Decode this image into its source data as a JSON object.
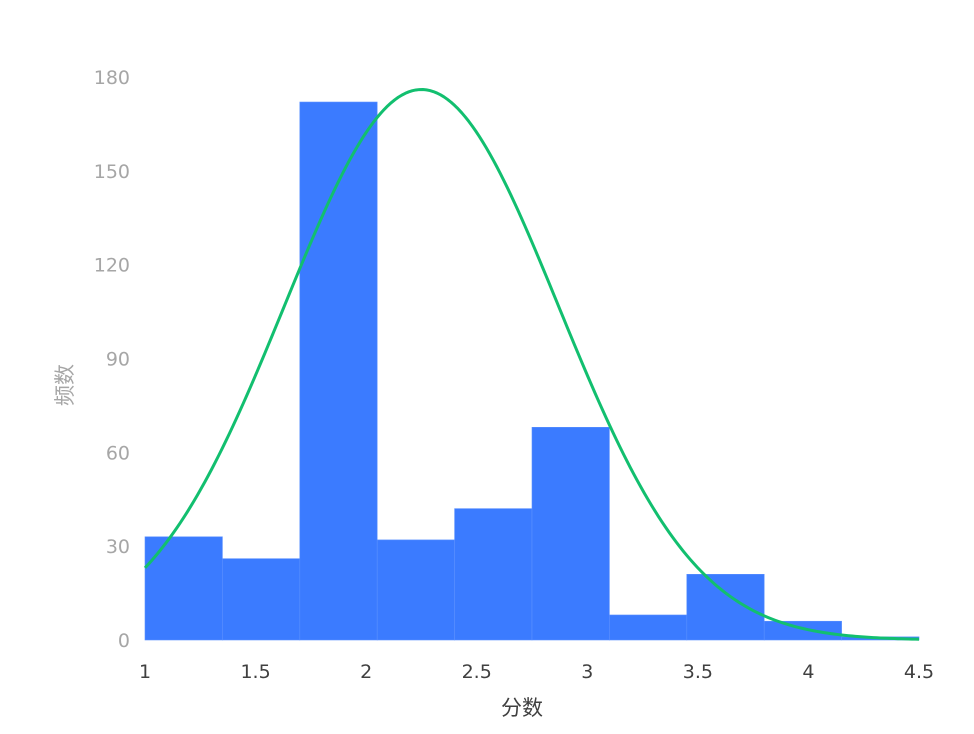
{
  "chart_data": {
    "type": "bar",
    "subtype": "histogram-with-density-curve",
    "title": "",
    "xlabel": "分数",
    "ylabel": "频数",
    "xlim": [
      1,
      4.5
    ],
    "ylim": [
      0,
      180
    ],
    "x_ticks": [
      "1",
      "1.5",
      "2",
      "2.5",
      "3",
      "3.5",
      "4",
      "4.5"
    ],
    "y_ticks": [
      "0",
      "30",
      "60",
      "90",
      "120",
      "150",
      "180"
    ],
    "bin_edges": [
      1.0,
      1.35,
      1.7,
      2.05,
      2.4,
      2.75,
      3.1,
      3.45,
      3.8,
      4.15,
      4.5
    ],
    "values": [
      33,
      26,
      172,
      32,
      42,
      68,
      8,
      21,
      6,
      1
    ],
    "curve": {
      "type": "normal",
      "mean": 2.25,
      "sd": 0.62,
      "peak": 176
    },
    "colors": {
      "bar": "#3b7bff",
      "curve": "#12bf6f"
    },
    "grid": false,
    "legend": "none"
  }
}
